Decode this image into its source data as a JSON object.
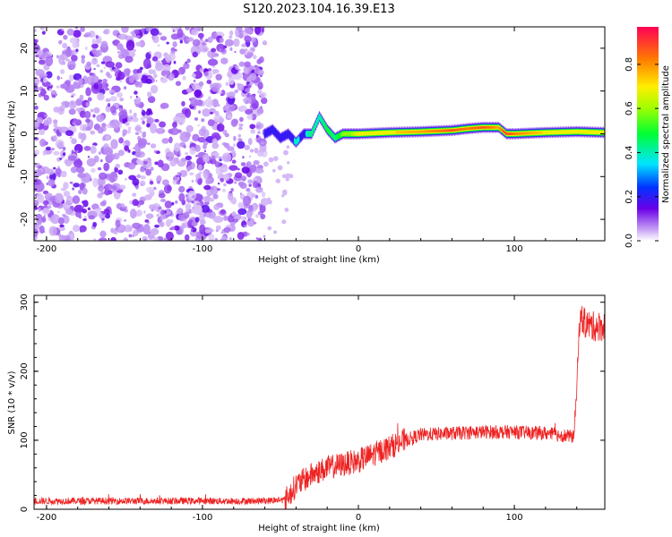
{
  "title": "S120.2023.104.16.39.E13",
  "chart_data": [
    {
      "type": "heatmap",
      "xlabel": "Height of straight line (km)",
      "ylabel": "Frequency (Hz)",
      "xlim": [
        -208,
        158
      ],
      "ylim": [
        -25,
        25
      ],
      "xticks": [
        -200,
        -100,
        0,
        100
      ],
      "yticks": [
        -20,
        -10,
        0,
        10,
        20
      ],
      "colorbar": {
        "label": "Normalized spectral amplitude",
        "range": [
          0,
          0.97
        ],
        "ticks": [
          0.0,
          0.2,
          0.4,
          0.6,
          0.8
        ],
        "tick_labels": [
          "0.0",
          "0.2",
          "0.4",
          "0.6",
          "0.8"
        ]
      },
      "noise_region_x": [
        -208,
        -60
      ],
      "signal_track": {
        "x": [
          -60,
          -55,
          -50,
          -45,
          -40,
          -35,
          -30,
          -25,
          -20,
          -15,
          -10,
          -5,
          0,
          20,
          40,
          60,
          70,
          80,
          90,
          95,
          100,
          120,
          140,
          158
        ],
        "freq_hz": [
          0,
          1,
          -1,
          0,
          -2,
          0,
          0,
          4,
          1,
          -1,
          0,
          0,
          0,
          0.3,
          0.5,
          0.8,
          1.2,
          1.5,
          1.5,
          0,
          0,
          0.3,
          0.5,
          0.3
        ],
        "amplitude": [
          0.3,
          0.35,
          0.3,
          0.3,
          0.4,
          0.35,
          0.45,
          0.4,
          0.5,
          0.45,
          0.6,
          0.6,
          0.7,
          0.75,
          0.8,
          0.9,
          0.85,
          0.9,
          0.8,
          0.95,
          0.85,
          0.75,
          0.7,
          0.75
        ]
      }
    },
    {
      "type": "line",
      "xlabel": "Height of straight line (km)",
      "ylabel": "SNR (10 * v/v)",
      "xlim": [
        -208,
        158
      ],
      "ylim": [
        0,
        310
      ],
      "xticks": [
        -200,
        -100,
        0,
        100
      ],
      "yticks": [
        0,
        100,
        200,
        300
      ],
      "series": [
        {
          "color": "#ee2222",
          "x": [
            -208,
            -150,
            -100,
            -60,
            -47,
            -43,
            -40,
            -35,
            -30,
            -20,
            -10,
            0,
            10,
            20,
            30,
            40,
            60,
            80,
            100,
            120,
            138,
            140,
            142,
            145,
            150,
            158
          ],
          "y": [
            12,
            12,
            12,
            12,
            14,
            25,
            35,
            42,
            50,
            60,
            65,
            70,
            80,
            90,
            100,
            108,
            110,
            112,
            112,
            110,
            105,
            170,
            280,
            270,
            265,
            265
          ]
        }
      ]
    }
  ]
}
